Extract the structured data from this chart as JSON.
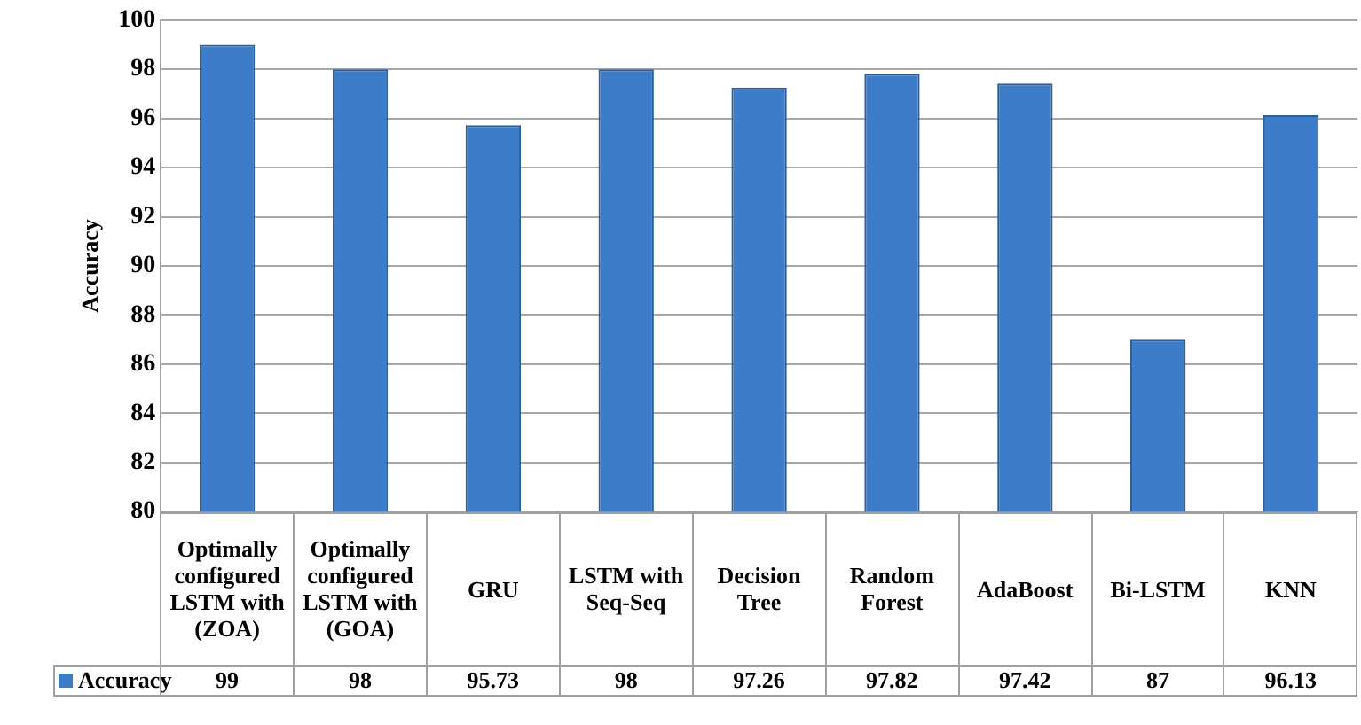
{
  "chart_data": {
    "type": "bar",
    "ylabel": "Accuracy",
    "categories": [
      "Optimally configured LSTM with (ZOA)",
      "Optimally configured LSTM with (GOA)",
      "GRU",
      "LSTM with Seq-Seq",
      "Decision Tree",
      "Random Forest",
      "AdaBoost",
      "Bi-LSTM",
      "KNN"
    ],
    "series": [
      {
        "name": "Accuracy",
        "color": "#3d7cc9",
        "values": [
          99,
          98,
          95.73,
          98,
          97.26,
          97.82,
          97.42,
          87,
          96.13
        ]
      }
    ],
    "ylim": [
      80,
      100
    ],
    "yticks": [
      80,
      82,
      84,
      86,
      88,
      90,
      92,
      94,
      96,
      98,
      100
    ],
    "grid": "y",
    "data_labels": true,
    "legend": "bottom"
  }
}
